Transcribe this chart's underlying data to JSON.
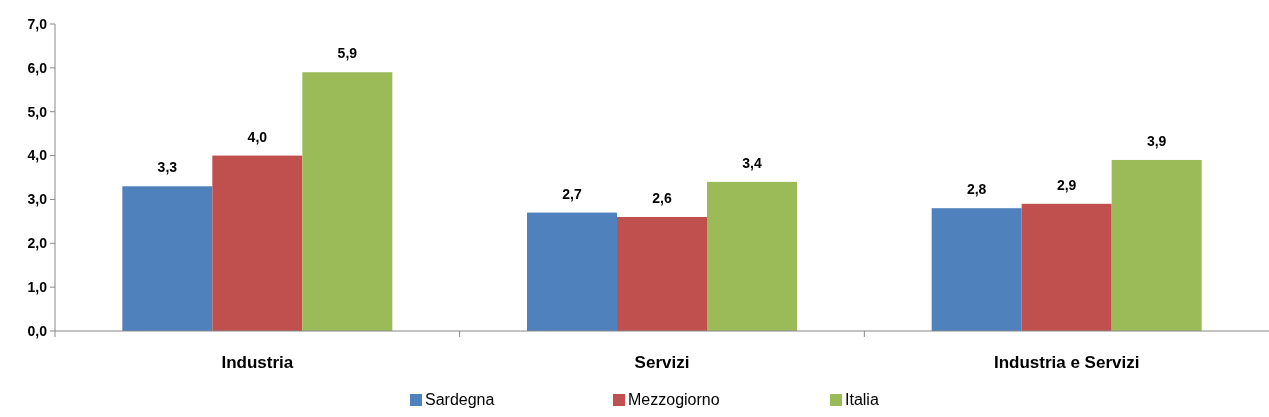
{
  "chart_data": {
    "type": "bar",
    "categories": [
      "Industria",
      "Servizi",
      "Industria e Servizi"
    ],
    "series": [
      {
        "name": "Sardegna",
        "color": "#4f81bd",
        "values": [
          3.3,
          2.7,
          2.8
        ],
        "value_labels": [
          "3,3",
          "2,7",
          "2,8"
        ]
      },
      {
        "name": "Mezzogiorno",
        "color": "#c0504d",
        "values": [
          4.0,
          2.6,
          2.9
        ],
        "value_labels": [
          "4,0",
          "2,6",
          "2,9"
        ]
      },
      {
        "name": "Italia",
        "color": "#9bbb59",
        "values": [
          5.9,
          3.4,
          3.9
        ],
        "value_labels": [
          "5,9",
          "3,4",
          "3,9"
        ]
      }
    ],
    "ylim": [
      0,
      7
    ],
    "yticks": [
      {
        "value": 0,
        "label": "0,0"
      },
      {
        "value": 1,
        "label": "1,0"
      },
      {
        "value": 2,
        "label": "2,0"
      },
      {
        "value": 3,
        "label": "3,0"
      },
      {
        "value": 4,
        "label": "4,0"
      },
      {
        "value": 5,
        "label": "5,0"
      },
      {
        "value": 6,
        "label": "6,0"
      },
      {
        "value": 7,
        "label": "7,0"
      }
    ],
    "legend": "bottom",
    "grid": false
  }
}
